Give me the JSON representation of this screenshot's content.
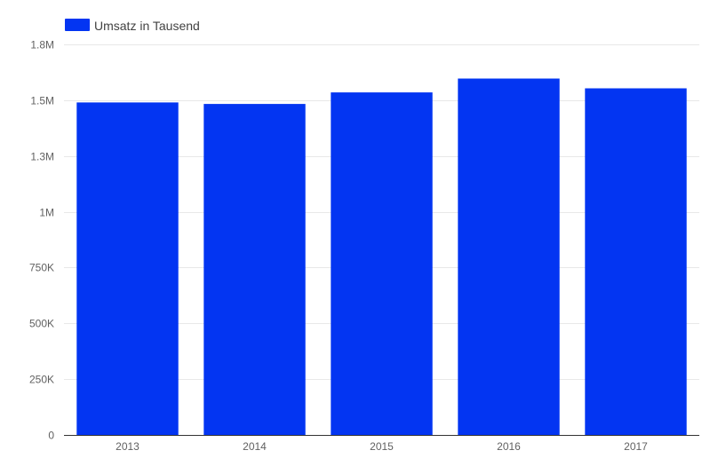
{
  "chart_data": {
    "type": "bar",
    "categories": [
      "2013",
      "2014",
      "2015",
      "2016",
      "2017"
    ],
    "series": [
      {
        "name": "Umsatz in Tausend",
        "color": "#0335f2",
        "values": [
          1490000,
          1483000,
          1535000,
          1597000,
          1553000
        ]
      }
    ],
    "ylim": [
      0,
      1750000
    ],
    "yticks": [
      {
        "value": 0,
        "label": "0"
      },
      {
        "value": 250000,
        "label": "250K"
      },
      {
        "value": 500000,
        "label": "500K"
      },
      {
        "value": 750000,
        "label": "750K"
      },
      {
        "value": 1000000,
        "label": "1M"
      },
      {
        "value": 1250000,
        "label": "1.3M"
      },
      {
        "value": 1500000,
        "label": "1.5M"
      },
      {
        "value": 1750000,
        "label": "1.8M"
      }
    ],
    "grid": true,
    "legend_position": "top-left",
    "title": "",
    "xlabel": "",
    "ylabel": ""
  }
}
